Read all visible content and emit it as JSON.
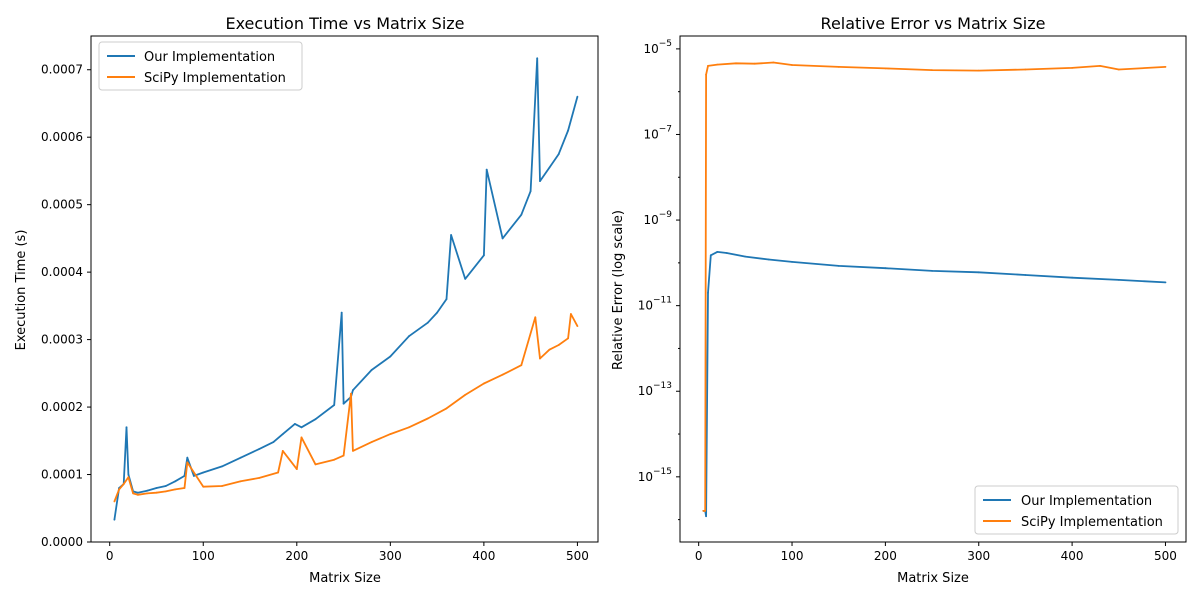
{
  "chart_data": [
    {
      "type": "line",
      "title": "Execution Time vs Matrix Size",
      "xlabel": "Matrix Size",
      "ylabel": "Execution Time (s)",
      "xlim": [
        -20,
        522
      ],
      "ylim": [
        0,
        0.00075
      ],
      "yscale": "linear",
      "xticks": [
        0,
        100,
        200,
        300,
        400,
        500
      ],
      "yticks": [
        0.0,
        0.0001,
        0.0002,
        0.0003,
        0.0004,
        0.0005,
        0.0006,
        0.0007
      ],
      "ytick_labels": [
        "0.0000",
        "0.0001",
        "0.0002",
        "0.0003",
        "0.0004",
        "0.0005",
        "0.0006",
        "0.0007"
      ],
      "legend_position": "top-left",
      "series": [
        {
          "name": "Our Implementation",
          "color": "#1f77b4",
          "x": [
            5,
            10,
            15,
            18,
            20,
            25,
            30,
            40,
            50,
            60,
            70,
            80,
            83,
            90,
            100,
            120,
            140,
            160,
            175,
            185,
            198,
            205,
            220,
            240,
            248,
            250,
            258,
            260,
            280,
            300,
            320,
            340,
            350,
            360,
            365,
            380,
            400,
            403,
            420,
            440,
            450,
            457,
            460,
            470,
            480,
            490,
            500
          ],
          "y": [
            3.3e-05,
            8e-05,
            8.6e-05,
            0.00017,
            0.0001,
            7.5e-05,
            7.3e-05,
            7.6e-05,
            8e-05,
            8.3e-05,
            9e-05,
            9.8e-05,
            0.000125,
            9.8e-05,
            0.000103,
            0.000112,
            0.000125,
            0.000138,
            0.000148,
            0.00016,
            0.000175,
            0.00017,
            0.000182,
            0.000203,
            0.00034,
            0.000205,
            0.000215,
            0.000225,
            0.000255,
            0.000275,
            0.000305,
            0.000325,
            0.00034,
            0.00036,
            0.000455,
            0.00039,
            0.000425,
            0.000552,
            0.00045,
            0.000485,
            0.00052,
            0.000717,
            0.000535,
            0.000555,
            0.000575,
            0.00061,
            0.00066
          ]
        },
        {
          "name": "SciPy Implementation",
          "color": "#ff7f0e",
          "x": [
            5,
            10,
            15,
            20,
            25,
            30,
            40,
            50,
            60,
            70,
            80,
            83,
            100,
            120,
            140,
            160,
            180,
            185,
            200,
            205,
            220,
            240,
            250,
            258,
            260,
            280,
            300,
            320,
            340,
            360,
            380,
            400,
            420,
            440,
            455,
            460,
            470,
            480,
            490,
            493,
            500
          ],
          "y": [
            6e-05,
            7.8e-05,
            8.6e-05,
            9.6e-05,
            7.2e-05,
            7e-05,
            7.2e-05,
            7.3e-05,
            7.5e-05,
            7.8e-05,
            8e-05,
            0.000118,
            8.2e-05,
            8.3e-05,
            9e-05,
            9.5e-05,
            0.000103,
            0.000135,
            0.000108,
            0.000155,
            0.000115,
            0.000122,
            0.000128,
            0.00022,
            0.000135,
            0.000148,
            0.00016,
            0.00017,
            0.000183,
            0.000198,
            0.000218,
            0.000235,
            0.000248,
            0.000262,
            0.000333,
            0.000272,
            0.000285,
            0.000292,
            0.000302,
            0.000338,
            0.00032
          ]
        }
      ]
    },
    {
      "type": "line",
      "title": "Relative Error vs Matrix Size",
      "xlabel": "Matrix Size",
      "ylabel": "Relative Error (log scale)",
      "xlim": [
        -20,
        522
      ],
      "ylim": [
        3e-17,
        2e-05
      ],
      "yscale": "log",
      "xticks": [
        0,
        100,
        200,
        300,
        400,
        500
      ],
      "yticks": [
        1e-15,
        1e-13,
        1e-11,
        1e-09,
        1e-07,
        1e-05
      ],
      "ytick_mantissa": "10",
      "ytick_exponents": [
        "−15",
        "−13",
        "−11",
        "−9",
        "−7",
        "−5"
      ],
      "legend_position": "bottom-right",
      "series": [
        {
          "name": "Our Implementation",
          "color": "#1f77b4",
          "x": [
            5,
            7,
            8,
            10,
            13,
            20,
            30,
            50,
            75,
            100,
            150,
            200,
            250,
            300,
            350,
            400,
            450,
            500
          ],
          "y": [
            1.6e-16,
            1.6e-16,
            1.2e-16,
            2e-11,
            1.5e-10,
            1.8e-10,
            1.7e-10,
            1.4e-10,
            1.2e-10,
            1.05e-10,
            8.5e-11,
            7.5e-11,
            6.5e-11,
            6e-11,
            5.2e-11,
            4.5e-11,
            4e-11,
            3.5e-11
          ]
        },
        {
          "name": "SciPy Implementation",
          "color": "#ff7f0e",
          "x": [
            5,
            7,
            8,
            10,
            20,
            40,
            60,
            80,
            100,
            150,
            200,
            250,
            300,
            350,
            400,
            430,
            450,
            500
          ],
          "y": [
            1.6e-16,
            1.6e-16,
            2.5e-06,
            4e-06,
            4.3e-06,
            4.6e-06,
            4.5e-06,
            4.8e-06,
            4.2e-06,
            3.8e-06,
            3.5e-06,
            3.2e-06,
            3.1e-06,
            3.3e-06,
            3.6e-06,
            4e-06,
            3.3e-06,
            3.8e-06
          ]
        }
      ]
    }
  ]
}
